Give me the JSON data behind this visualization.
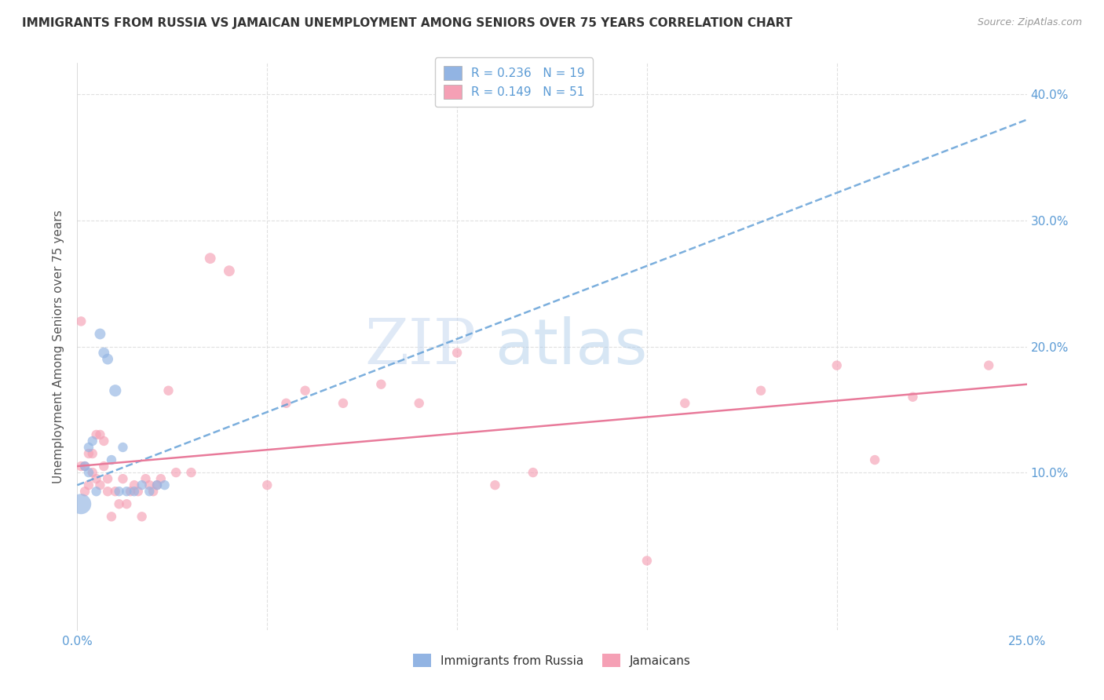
{
  "title": "IMMIGRANTS FROM RUSSIA VS JAMAICAN UNEMPLOYMENT AMONG SENIORS OVER 75 YEARS CORRELATION CHART",
  "source": "Source: ZipAtlas.com",
  "ylabel": "Unemployment Among Seniors over 75 years",
  "russia_color": "#92b4e3",
  "jamaica_color": "#f5a0b5",
  "russia_R": 0.236,
  "russia_N": 19,
  "jamaica_R": 0.149,
  "jamaica_N": 51,
  "russia_line_color": "#5b9bd5",
  "jamaica_line_color": "#e87a9a",
  "russia_scatter_x": [
    0.001,
    0.002,
    0.003,
    0.003,
    0.004,
    0.005,
    0.006,
    0.007,
    0.008,
    0.009,
    0.01,
    0.011,
    0.012,
    0.013,
    0.015,
    0.017,
    0.019,
    0.021,
    0.023
  ],
  "russia_scatter_y": [
    0.075,
    0.105,
    0.12,
    0.1,
    0.125,
    0.085,
    0.21,
    0.195,
    0.19,
    0.11,
    0.165,
    0.085,
    0.12,
    0.085,
    0.085,
    0.09,
    0.085,
    0.09,
    0.09
  ],
  "russia_sizes": [
    350,
    80,
    80,
    80,
    80,
    80,
    100,
    100,
    100,
    80,
    120,
    80,
    80,
    80,
    80,
    80,
    80,
    80,
    80
  ],
  "jamaica_scatter_x": [
    0.001,
    0.001,
    0.002,
    0.002,
    0.003,
    0.003,
    0.004,
    0.004,
    0.005,
    0.005,
    0.006,
    0.006,
    0.007,
    0.007,
    0.008,
    0.008,
    0.009,
    0.01,
    0.011,
    0.012,
    0.013,
    0.014,
    0.015,
    0.016,
    0.017,
    0.018,
    0.019,
    0.02,
    0.021,
    0.022,
    0.024,
    0.026,
    0.03,
    0.035,
    0.04,
    0.05,
    0.055,
    0.06,
    0.07,
    0.08,
    0.09,
    0.1,
    0.11,
    0.12,
    0.15,
    0.16,
    0.18,
    0.2,
    0.21,
    0.22,
    0.24
  ],
  "jamaica_scatter_y": [
    0.22,
    0.105,
    0.105,
    0.085,
    0.115,
    0.09,
    0.115,
    0.1,
    0.13,
    0.095,
    0.13,
    0.09,
    0.125,
    0.105,
    0.095,
    0.085,
    0.065,
    0.085,
    0.075,
    0.095,
    0.075,
    0.085,
    0.09,
    0.085,
    0.065,
    0.095,
    0.09,
    0.085,
    0.09,
    0.095,
    0.165,
    0.1,
    0.1,
    0.27,
    0.26,
    0.09,
    0.155,
    0.165,
    0.155,
    0.17,
    0.155,
    0.195,
    0.09,
    0.1,
    0.03,
    0.155,
    0.165,
    0.185,
    0.11,
    0.16,
    0.185
  ],
  "jamaica_sizes": [
    80,
    80,
    80,
    80,
    80,
    80,
    80,
    80,
    80,
    80,
    80,
    80,
    80,
    80,
    80,
    80,
    80,
    80,
    80,
    80,
    80,
    80,
    80,
    80,
    80,
    80,
    80,
    80,
    80,
    80,
    80,
    80,
    80,
    100,
    100,
    80,
    80,
    80,
    80,
    80,
    80,
    80,
    80,
    80,
    80,
    80,
    80,
    80,
    80,
    80,
    80
  ],
  "russia_trendline_x": [
    0.0,
    0.25
  ],
  "russia_trendline_y": [
    0.09,
    0.38
  ],
  "jamaica_trendline_x": [
    0.0,
    0.25
  ],
  "jamaica_trendline_y": [
    0.105,
    0.17
  ],
  "watermark_zip": "ZIP",
  "watermark_atlas": "atlas",
  "background_color": "#ffffff",
  "grid_color": "#e0e0e0",
  "tick_color": "#5b9bd5",
  "x_ticks": [
    0.0,
    0.05,
    0.1,
    0.15,
    0.2,
    0.25
  ],
  "x_ticklabels": [
    "0.0%",
    "",
    "",
    "",
    "",
    "25.0%"
  ],
  "y_ticks": [
    0.0,
    0.1,
    0.2,
    0.3,
    0.4
  ],
  "y_ticklabels_right": [
    "",
    "10.0%",
    "20.0%",
    "30.0%",
    "40.0%"
  ],
  "ylim": [
    -0.025,
    0.425
  ],
  "xlim": [
    0.0,
    0.25
  ]
}
